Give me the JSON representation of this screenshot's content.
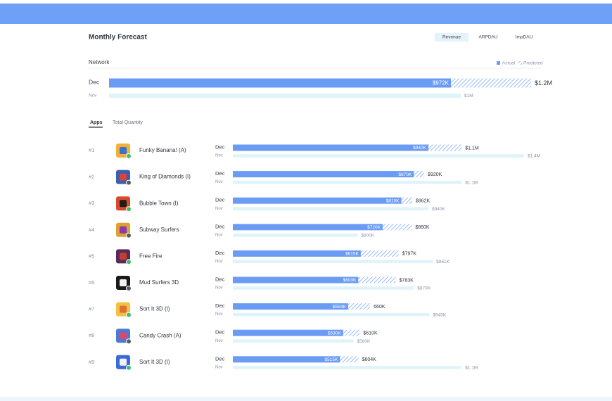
{
  "header": {
    "title": "Monthly Forecast",
    "tabs": [
      "Revenue",
      "ARPDAU",
      "ImpDAU"
    ]
  },
  "network": {
    "label": "Network",
    "legend": [
      "Actual",
      "Predicted"
    ],
    "current": {
      "month": "Dec",
      "actual": {
        "value": 972000,
        "label": "$972K"
      },
      "total": {
        "value": 1200000,
        "label": "$1.2M"
      }
    },
    "previous": {
      "month": "Nov",
      "total": {
        "value": 1000000,
        "label": "$1M"
      }
    }
  },
  "subtabs": [
    "Apps",
    "Total Quantity"
  ],
  "apps": [
    {
      "rank": "#1",
      "name": "Funky Banana!  (A)",
      "current": {
        "month": "Dec",
        "actual": {
          "value": 940000,
          "label": "$940K"
        },
        "total": {
          "value": 1100000,
          "label": "$1.1M"
        }
      },
      "previous": {
        "month": "Nov",
        "total": {
          "value": 1400000,
          "label": "$1.4M"
        }
      }
    },
    {
      "rank": "#2",
      "name": "King of Diamonds (I)",
      "current": {
        "month": "Dec",
        "actual": {
          "value": 870000,
          "label": "$870K"
        },
        "total": {
          "value": 920000,
          "label": "$920K"
        }
      },
      "previous": {
        "month": "Nov",
        "total": {
          "value": 1100000,
          "label": "$1.1M"
        }
      }
    },
    {
      "rank": "#3",
      "name": "Bubble Town (I)",
      "current": {
        "month": "Dec",
        "actual": {
          "value": 810000,
          "label": "$810K"
        },
        "total": {
          "value": 862000,
          "label": "$862K"
        }
      },
      "previous": {
        "month": "Nov",
        "total": {
          "value": 940000,
          "label": "$940K"
        }
      }
    },
    {
      "rank": "#4",
      "name": "Subway Surfers",
      "current": {
        "month": "Dec",
        "actual": {
          "value": 720000,
          "label": "$720K"
        },
        "total": {
          "value": 860000,
          "label": "$860K"
        }
      },
      "previous": {
        "month": "Nov",
        "total": {
          "value": 600000,
          "label": "$600K"
        }
      }
    },
    {
      "rank": "#5",
      "name": "Free Fire",
      "current": {
        "month": "Dec",
        "actual": {
          "value": 615000,
          "label": "$615K"
        },
        "total": {
          "value": 797000,
          "label": "$797K"
        }
      },
      "previous": {
        "month": "Nov",
        "total": {
          "value": 961000,
          "label": "$961K"
        }
      }
    },
    {
      "rank": "#6",
      "name": "Mud Surfers 3D",
      "current": {
        "month": "Dec",
        "actual": {
          "value": 603000,
          "label": "$603K"
        },
        "total": {
          "value": 783000,
          "label": "$783K"
        }
      },
      "previous": {
        "month": "Nov",
        "total": {
          "value": 870000,
          "label": "$870K"
        }
      }
    },
    {
      "rank": "#7",
      "name": "Sort It 3D (I)",
      "current": {
        "month": "Dec",
        "actual": {
          "value": 554000,
          "label": "$554K"
        },
        "total": {
          "value": 660000,
          "label": "660K"
        }
      },
      "previous": {
        "month": "Nov",
        "total": {
          "value": 945000,
          "label": "$945K"
        }
      }
    },
    {
      "rank": "#8",
      "name": "Candy Crash (A)",
      "current": {
        "month": "Dec",
        "actual": {
          "value": 530000,
          "label": "$530K"
        },
        "total": {
          "value": 610000,
          "label": "$610K"
        }
      },
      "previous": {
        "month": "Nov",
        "total": {
          "value": 580000,
          "label": "$580K"
        }
      }
    },
    {
      "rank": "#9",
      "name": "Sort It 3D (I)",
      "current": {
        "month": "Dec",
        "actual": {
          "value": 515000,
          "label": "$515K"
        },
        "total": {
          "value": 604000,
          "label": "$604K"
        }
      },
      "previous": {
        "month": "Nov",
        "total": {
          "value": 1100000,
          "label": "$1.1M"
        }
      }
    }
  ]
}
